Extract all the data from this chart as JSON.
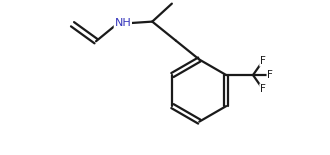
{
  "background_color": "#ffffff",
  "line_color": "#1a1a1a",
  "nh_color": "#3333bb",
  "line_width": 1.6,
  "figsize": [
    3.3,
    1.55
  ],
  "dpi": 100,
  "xlim": [
    0,
    10
  ],
  "ylim": [
    0,
    4.7
  ]
}
